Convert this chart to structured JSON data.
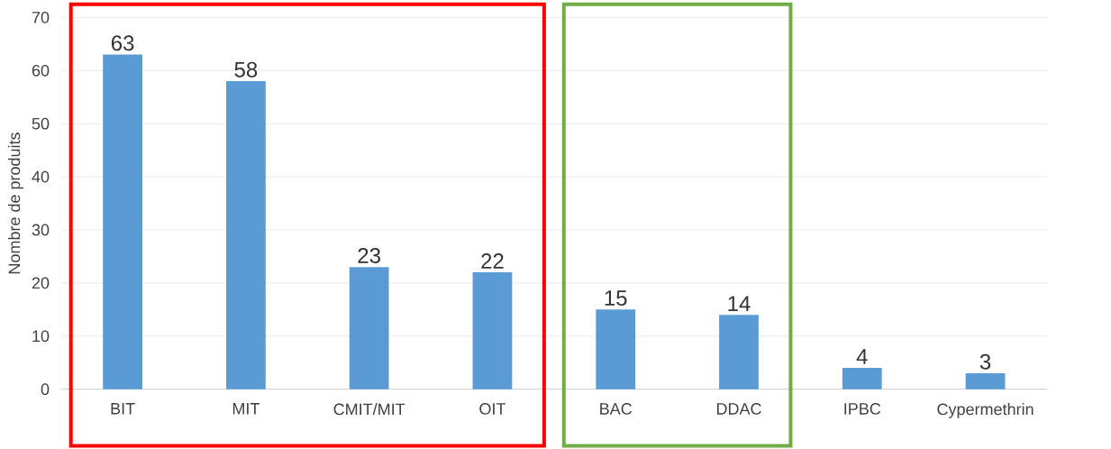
{
  "chart_data": {
    "type": "bar",
    "ylabel": "Nombre de produits",
    "categories": [
      "BIT",
      "MIT",
      "CMIT/MIT",
      "OIT",
      "BAC",
      "DDAC",
      "IPBC",
      "Cypermethrin"
    ],
    "values": [
      63,
      58,
      23,
      22,
      15,
      14,
      4,
      3
    ],
    "color": "#5b9bd5",
    "ylim": [
      0,
      70
    ],
    "yticks": [
      0,
      10,
      20,
      30,
      40,
      50,
      60,
      70
    ],
    "grid": "y",
    "data_labels": true
  }
}
